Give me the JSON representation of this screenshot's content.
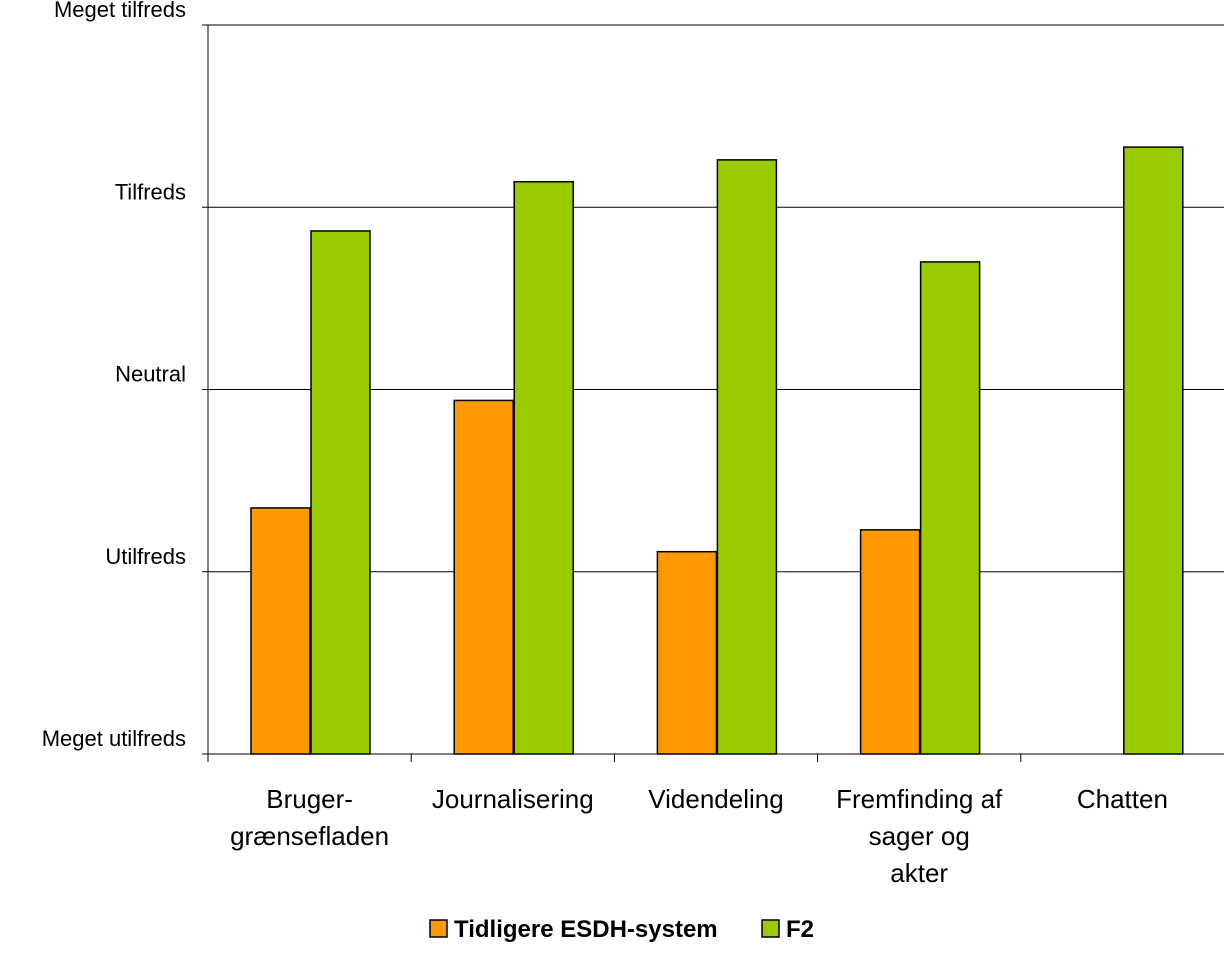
{
  "chart_data": {
    "type": "bar",
    "title": "",
    "xlabel": "",
    "ylabel": "",
    "categories": [
      [
        "Bruger-",
        "grænsefladen"
      ],
      [
        "Journalisering"
      ],
      [
        "Videndeling"
      ],
      [
        "Fremfinding af",
        "sager og",
        "akter"
      ],
      [
        "Chatten"
      ]
    ],
    "y_ticks": [
      {
        "value": 1,
        "label": "Meget utilfreds"
      },
      {
        "value": 2,
        "label": "Utilfreds"
      },
      {
        "value": 3,
        "label": "Neutral"
      },
      {
        "value": 4,
        "label": "Tilfreds"
      },
      {
        "value": 5,
        "label": "Meget tilfreds"
      }
    ],
    "ylim": [
      1,
      5
    ],
    "grid": true,
    "legend_position": "bottom",
    "series": [
      {
        "name": "Tidligere ESDH-system",
        "color": "#FF9900",
        "values": [
          2.35,
          2.94,
          2.11,
          2.23,
          null
        ]
      },
      {
        "name": "F2",
        "color": "#99CC00",
        "values": [
          3.87,
          4.14,
          4.26,
          3.7,
          4.33
        ]
      }
    ]
  }
}
